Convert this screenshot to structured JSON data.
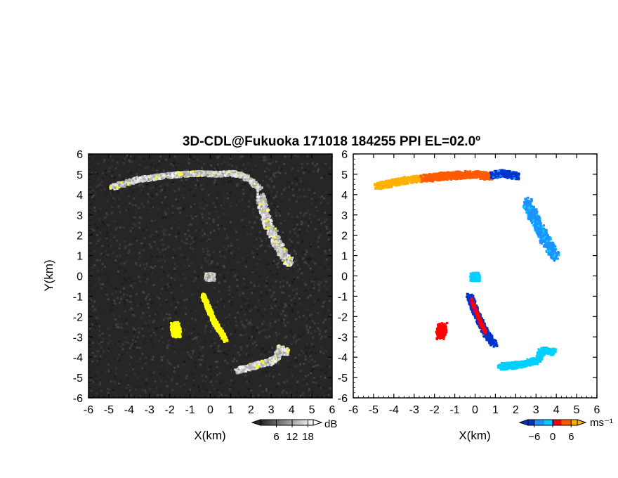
{
  "chart_data": {
    "title": "3D-CDL@Fukuoka 171018 184255 PPI EL=02.0º",
    "panels": [
      {
        "type": "heatmap",
        "quantity": "reflectivity",
        "xlabel": "X(km)",
        "ylabel": "Y(km)",
        "xlim": [
          -6,
          6
        ],
        "ylim": [
          -6,
          6
        ],
        "xticks": [
          "-6",
          "-5",
          "-4",
          "-3",
          "-2",
          "-1",
          "0",
          "1",
          "2",
          "3",
          "4",
          "5",
          "6"
        ],
        "yticks": [
          "-6",
          "-5",
          "-4",
          "-3",
          "-2",
          "-1",
          "0",
          "1",
          "2",
          "3",
          "4",
          "5",
          "6"
        ],
        "background_color": "#262626",
        "colorbar": {
          "unit": "dB",
          "tick_labels": [
            "6",
            "12",
            "18"
          ],
          "ticks": [
            6,
            12,
            18
          ],
          "range": [
            0,
            20
          ]
        },
        "echo_colors": {
          "weak": "#bdbdbd",
          "strong": "#ffff00"
        },
        "features": [
          {
            "name": "north arc",
            "points": [
              [
                -4.9,
                4.4
              ],
              [
                -4.3,
                4.6
              ],
              [
                -3.5,
                4.8
              ],
              [
                -2.5,
                4.95
              ],
              [
                -1.5,
                5.05
              ],
              [
                -0.5,
                5.1
              ],
              [
                0.3,
                5.05
              ],
              [
                1.0,
                5.1
              ],
              [
                1.5,
                5.0
              ],
              [
                2.0,
                4.7
              ],
              [
                2.4,
                4.3
              ]
            ],
            "width_km": 0.12,
            "level_db": 12
          },
          {
            "name": "east band",
            "points": [
              [
                2.4,
                4.0
              ],
              [
                2.6,
                3.2
              ],
              [
                2.8,
                2.5
              ],
              [
                3.1,
                2.0
              ],
              [
                3.3,
                1.5
              ],
              [
                3.6,
                1.0
              ],
              [
                3.9,
                0.7
              ]
            ],
            "width_km": 0.2,
            "level_db": 11
          },
          {
            "name": "southeast arc",
            "points": [
              [
                1.3,
                -4.6
              ],
              [
                1.9,
                -4.45
              ],
              [
                2.5,
                -4.25
              ],
              [
                2.9,
                -4.2
              ],
              [
                3.2,
                -3.95
              ],
              [
                3.4,
                -3.5
              ],
              [
                3.7,
                -3.7
              ]
            ],
            "width_km": 0.14,
            "level_db": 10
          },
          {
            "name": "center streak",
            "points": [
              [
                -0.4,
                -0.9
              ],
              [
                -0.2,
                -1.4
              ],
              [
                0.0,
                -1.9
              ],
              [
                0.2,
                -2.3
              ],
              [
                0.4,
                -2.6
              ],
              [
                0.7,
                -3.1
              ]
            ],
            "width_km": 0.1,
            "level_db": 19
          },
          {
            "name": "west blob",
            "points": [
              [
                -1.8,
                -2.4
              ],
              [
                -1.7,
                -2.8
              ]
            ],
            "width_km": 0.2,
            "level_db": 19
          },
          {
            "name": "center dot",
            "points": [
              [
                -0.15,
                0.0
              ],
              [
                0.0,
                0.0
              ]
            ],
            "width_km": 0.18,
            "level_db": 8
          }
        ]
      },
      {
        "type": "heatmap",
        "quantity": "doppler velocity",
        "xlabel": "X(km)",
        "xlim": [
          -6,
          6
        ],
        "ylim": [
          -6,
          6
        ],
        "xticks": [
          "-6",
          "-5",
          "-4",
          "-3",
          "-2",
          "-1",
          "0",
          "1",
          "2",
          "3",
          "4",
          "5",
          "6"
        ],
        "yticks": [
          "-6",
          "-5",
          "-4",
          "-3",
          "-2",
          "-1",
          "0",
          "1",
          "2",
          "3",
          "4",
          "5",
          "6"
        ],
        "background_color": "#ffffff",
        "colorbar": {
          "unit": "ms⁻¹",
          "tick_labels": [
            "−6",
            "0",
            "6"
          ],
          "ticks": [
            -6,
            0,
            6
          ],
          "range": [
            -8,
            8
          ]
        },
        "palette": {
          "far_negative": "#0033cc",
          "negative": "#1e90ff",
          "slight_negative": "#00d0ff",
          "zero": "#7a00c0",
          "slight_positive": "#ff0000",
          "positive": "#ff5a00",
          "far_positive": "#ffb000"
        },
        "features": [
          {
            "name": "north arc west",
            "points": [
              [
                -4.9,
                4.45
              ],
              [
                -4.3,
                4.6
              ],
              [
                -3.5,
                4.75
              ],
              [
                -2.6,
                4.85
              ]
            ],
            "width_km": 0.16,
            "velocity": 7.0
          },
          {
            "name": "north arc middle",
            "points": [
              [
                -2.6,
                4.85
              ],
              [
                -1.8,
                4.95
              ],
              [
                -1.0,
                5.0
              ],
              [
                -0.3,
                5.05
              ],
              [
                0.3,
                5.0
              ],
              [
                0.8,
                4.95
              ]
            ],
            "width_km": 0.18,
            "velocity": 4.5
          },
          {
            "name": "north arc east",
            "points": [
              [
                0.8,
                5.0
              ],
              [
                1.2,
                5.1
              ],
              [
                1.6,
                5.05
              ],
              [
                2.0,
                4.95
              ]
            ],
            "width_km": 0.16,
            "velocity": -6.5
          },
          {
            "name": "east band",
            "points": [
              [
                2.5,
                3.7
              ],
              [
                2.8,
                3.0
              ],
              [
                3.1,
                2.5
              ],
              [
                3.3,
                2.0
              ],
              [
                3.6,
                1.5
              ],
              [
                3.9,
                1.0
              ]
            ],
            "width_km": 0.22,
            "velocity": -3.5
          },
          {
            "name": "southeast arc",
            "points": [
              [
                1.2,
                -4.4
              ],
              [
                1.8,
                -4.35
              ],
              [
                2.5,
                -4.25
              ],
              [
                3.0,
                -4.1
              ],
              [
                3.3,
                -3.6
              ],
              [
                3.8,
                -3.7
              ]
            ],
            "width_km": 0.16,
            "velocity": -1.5
          },
          {
            "name": "center streak",
            "points": [
              [
                -0.35,
                -0.9
              ],
              [
                -0.15,
                -1.4
              ],
              [
                0.05,
                -1.9
              ],
              [
                0.3,
                -2.4
              ],
              [
                0.5,
                -2.8
              ],
              [
                0.9,
                -3.3
              ]
            ],
            "width_km": 0.14,
            "velocity": -7.0
          },
          {
            "name": "center streak core",
            "points": [
              [
                -0.25,
                -1.1
              ],
              [
                0.0,
                -1.7
              ],
              [
                0.25,
                -2.3
              ],
              [
                0.45,
                -2.7
              ]
            ],
            "width_km": 0.06,
            "velocity": 1.0
          },
          {
            "name": "west blob",
            "points": [
              [
                -1.65,
                -2.45
              ],
              [
                -1.75,
                -2.85
              ]
            ],
            "width_km": 0.22,
            "velocity": 1.5
          },
          {
            "name": "center dot",
            "points": [
              [
                -0.1,
                0.0
              ],
              [
                0.0,
                0.0
              ]
            ],
            "width_km": 0.2,
            "velocity": -1.0
          }
        ]
      }
    ]
  }
}
